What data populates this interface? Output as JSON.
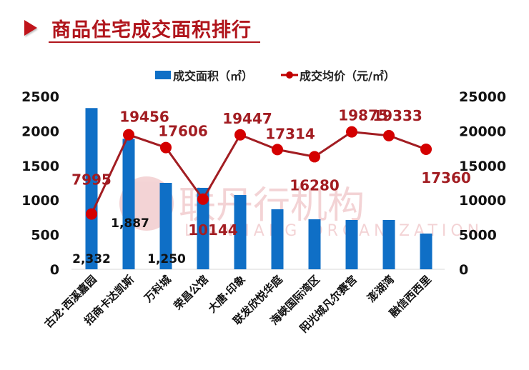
{
  "header": {
    "title": "商品住宅成交面积排行",
    "accent_color": "#b0151c"
  },
  "legend": {
    "bar_label": "成交面积（㎡）",
    "line_label": "成交均价（元/㎡）"
  },
  "watermark": {
    "cn": "联丹行机构",
    "en": "LIANHANG ORGANIZATION"
  },
  "colors": {
    "bar": "#0f6fc6",
    "line": "#c00000",
    "line_dark": "#a21d22",
    "axis_text": "#111111"
  },
  "chart_data": {
    "type": "bar+line",
    "title": "商品住宅成交面积排行",
    "categories": [
      "古龙·西溪嘉园",
      "招商卡达凯斯",
      "万科城",
      "荣昌公馆",
      "大唐·印象",
      "联发欣悦华庭",
      "海峡国际湾区",
      "阳光城凡尔赛宫",
      "澎湖湾",
      "融信西西里"
    ],
    "series": [
      {
        "name": "成交面积（㎡）",
        "type": "bar",
        "axis": "left",
        "values": [
          2332,
          1887,
          1250,
          1178,
          1074,
          868,
          723,
          713,
          713,
          517
        ],
        "data_labels": [
          "2,332",
          "1,887",
          "1,250",
          null,
          null,
          null,
          null,
          null,
          null,
          null
        ]
      },
      {
        "name": "成交均价（元/㎡）",
        "type": "line",
        "axis": "right",
        "values": [
          7995,
          19456,
          17606,
          10144,
          19447,
          17314,
          16280,
          19875,
          19333,
          17360
        ],
        "data_labels": [
          "7995",
          "19456",
          "17606",
          "10144",
          "19447",
          "17314",
          "16280",
          "19875",
          "19333",
          "17360"
        ]
      }
    ],
    "left_axis": {
      "ylim": [
        0,
        2500
      ],
      "ticks": [
        "0",
        "500",
        "1000",
        "1500",
        "2000",
        "2500"
      ]
    },
    "right_axis": {
      "ylim": [
        0,
        25000
      ],
      "ticks": [
        "0",
        "5000",
        "10000",
        "15000",
        "20000",
        "25000"
      ]
    },
    "grid": false,
    "legend_position": "top"
  }
}
